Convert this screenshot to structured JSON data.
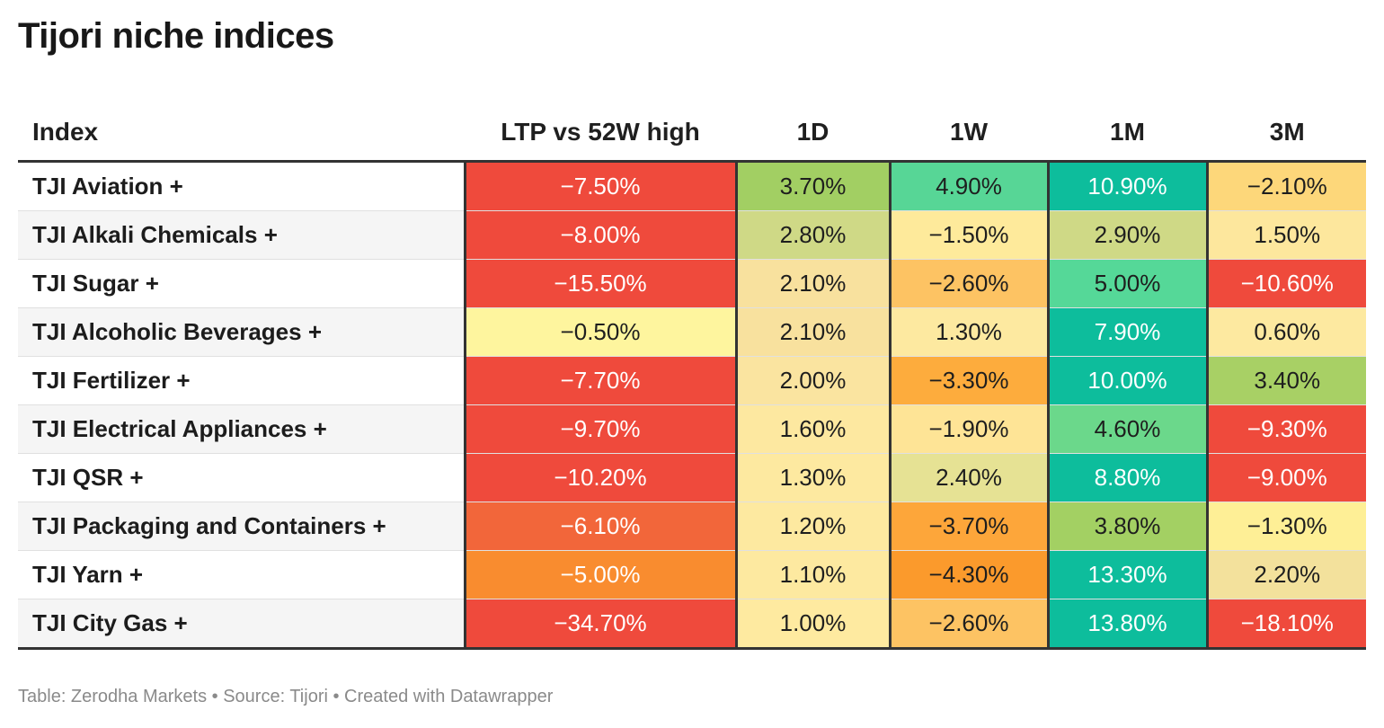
{
  "title": "Tijori niche indices",
  "footer": "Table: Zerodha Markets • Source: Tijori • Created with Datawrapper",
  "chart_data": {
    "type": "table",
    "columns": [
      "Index",
      "LTP vs 52W high",
      "1D",
      "1W",
      "1M",
      "3M"
    ],
    "rows": [
      {
        "name": "TJI Aviation +",
        "values": [
          "−7.50%",
          "3.70%",
          "4.90%",
          "10.90%",
          "−2.10%"
        ],
        "colors": [
          "#ef4a3c",
          "#a2cf63",
          "#57d696",
          "#0dbd9c",
          "#fdd77a"
        ],
        "dark": [
          true,
          false,
          false,
          true,
          false
        ]
      },
      {
        "name": "TJI Alkali Chemicals +",
        "values": [
          "−8.00%",
          "2.80%",
          "−1.50%",
          "2.90%",
          "1.50%"
        ],
        "colors": [
          "#ef4a3c",
          "#cfd986",
          "#feea9b",
          "#cfd986",
          "#fde79d"
        ],
        "dark": [
          true,
          false,
          false,
          false,
          false
        ]
      },
      {
        "name": "TJI Sugar +",
        "values": [
          "−15.50%",
          "2.10%",
          "−2.60%",
          "5.00%",
          "−10.60%"
        ],
        "colors": [
          "#ef4a3c",
          "#f8e19e",
          "#fdc363",
          "#55d898",
          "#ef4a3c"
        ],
        "dark": [
          true,
          false,
          false,
          false,
          true
        ]
      },
      {
        "name": "TJI Alcoholic Beverages +",
        "values": [
          "−0.50%",
          "2.10%",
          "1.30%",
          "7.90%",
          "0.60%"
        ],
        "colors": [
          "#fef59e",
          "#f8e19e",
          "#fde9a0",
          "#0dbd9c",
          "#fde9a0"
        ],
        "dark": [
          false,
          false,
          false,
          true,
          false
        ]
      },
      {
        "name": "TJI Fertilizer +",
        "values": [
          "−7.70%",
          "2.00%",
          "−3.30%",
          "10.00%",
          "3.40%"
        ],
        "colors": [
          "#ef4a3c",
          "#fae4a0",
          "#fdac3d",
          "#0dbd9c",
          "#a8d065"
        ],
        "dark": [
          true,
          false,
          false,
          true,
          false
        ]
      },
      {
        "name": "TJI Electrical Appliances +",
        "values": [
          "−9.70%",
          "1.60%",
          "−1.90%",
          "4.60%",
          "−9.30%"
        ],
        "colors": [
          "#ef4a3c",
          "#fde8a0",
          "#fee496",
          "#6bd88b",
          "#ef4a3c"
        ],
        "dark": [
          true,
          false,
          false,
          false,
          true
        ]
      },
      {
        "name": "TJI QSR +",
        "values": [
          "−10.20%",
          "1.30%",
          "2.40%",
          "8.80%",
          "−9.00%"
        ],
        "colors": [
          "#ef4a3c",
          "#fde9a0",
          "#e6e294",
          "#0dbd9c",
          "#ef4a3c"
        ],
        "dark": [
          true,
          false,
          false,
          true,
          true
        ]
      },
      {
        "name": "TJI Packaging and Containers +",
        "values": [
          "−6.10%",
          "1.20%",
          "−3.70%",
          "3.80%",
          "−1.30%"
        ],
        "colors": [
          "#f2663a",
          "#fde9a0",
          "#fda63a",
          "#a3d063",
          "#feef96"
        ],
        "dark": [
          true,
          false,
          false,
          false,
          false
        ]
      },
      {
        "name": "TJI Yarn +",
        "values": [
          "−5.00%",
          "1.10%",
          "−4.30%",
          "13.30%",
          "2.20%"
        ],
        "colors": [
          "#f98c2f",
          "#fde9a0",
          "#fb9a2c",
          "#0dbd9c",
          "#f3e19c"
        ],
        "dark": [
          true,
          false,
          false,
          true,
          false
        ]
      },
      {
        "name": "TJI City Gas +",
        "values": [
          "−34.70%",
          "1.00%",
          "−2.60%",
          "13.80%",
          "−18.10%"
        ],
        "colors": [
          "#ef4a3c",
          "#feeaa0",
          "#fdc363",
          "#0dbd9c",
          "#ef4a3c"
        ],
        "dark": [
          true,
          false,
          false,
          true,
          true
        ]
      }
    ]
  }
}
